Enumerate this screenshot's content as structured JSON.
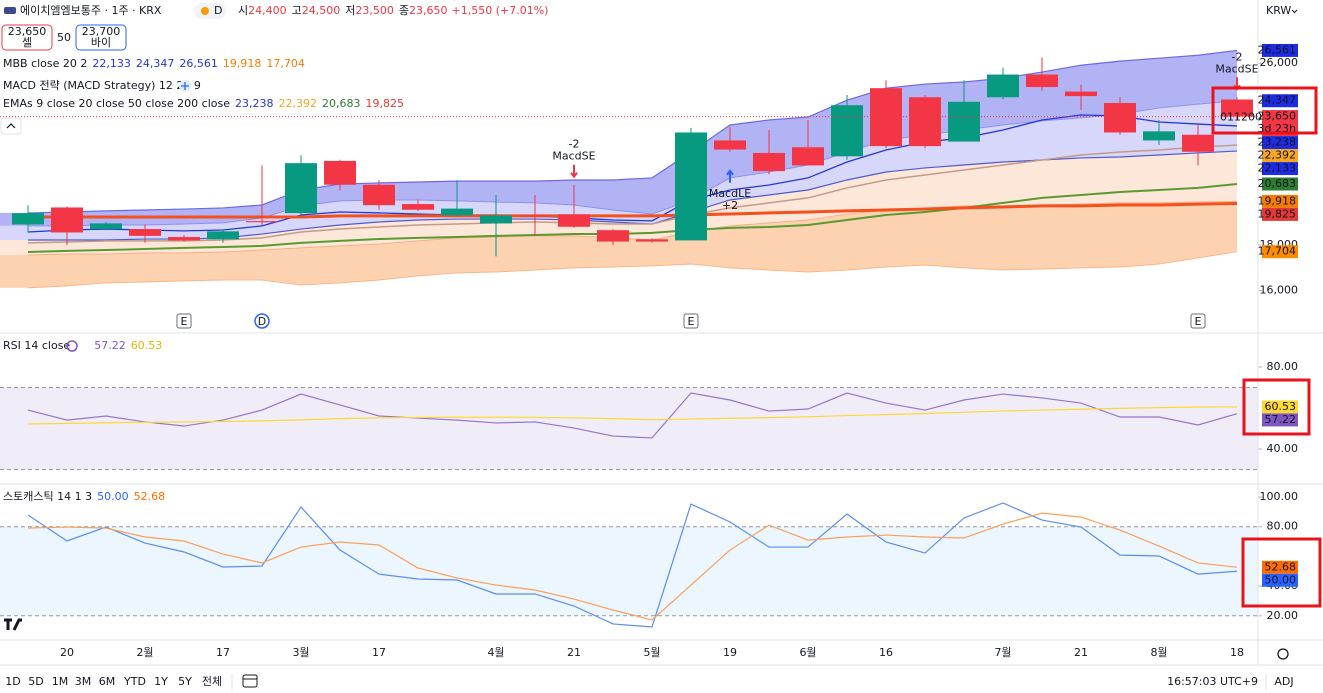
{
  "header": {
    "name": "에이치엠엠보통주 · 1주 · KRX",
    "interval": "D",
    "ohlc": [
      {
        "prefix": "시",
        "text": "24,400"
      },
      {
        "prefix": "고",
        "text": "24,500"
      },
      {
        "prefix": "저",
        "text": "23,500"
      },
      {
        "prefix": "종",
        "text": "23,650"
      }
    ],
    "change": "+1,550 (+7.01%)",
    "currency": "KRW"
  },
  "trade": {
    "sell": {
      "price": "23,650",
      "label": "셀"
    },
    "spread": "50",
    "buy": {
      "price": "23,700",
      "label": "바이"
    }
  },
  "toolbar": {
    "ranges": [
      "1D",
      "5D",
      "1M",
      "3M",
      "6M",
      "YTD",
      "1Y",
      "5Y",
      "전체"
    ],
    "time": "16:57:03 UTC+9",
    "adj": "ADJ"
  },
  "chart_data": [
    {
      "type": "candlestick",
      "categories": [
        null,
        "20",
        null,
        "2월",
        null,
        "17",
        null,
        "3월",
        null,
        "17",
        null,
        null,
        "4월",
        null,
        "21",
        null,
        "5월",
        null,
        "19",
        null,
        "6월",
        null,
        "16",
        null,
        null,
        "7월",
        null,
        "21",
        null,
        "8월",
        null,
        "18"
      ],
      "open": [
        18900,
        19650,
        18700,
        18700,
        18350,
        18250,
        19050,
        19400,
        21700,
        20650,
        19800,
        19300,
        18950,
        19300,
        19350,
        18650,
        18250,
        18200,
        22600,
        22050,
        22300,
        21900,
        24900,
        24500,
        22550,
        24500,
        25500,
        24750,
        24250,
        22600,
        22850,
        24400
      ],
      "high": [
        19750,
        19700,
        19000,
        18900,
        18450,
        18650,
        21500,
        21950,
        21750,
        20850,
        20000,
        20850,
        20200,
        20200,
        20650,
        18700,
        18300,
        23150,
        23200,
        23050,
        23500,
        24600,
        25250,
        24600,
        25250,
        25800,
        26250,
        25050,
        24500,
        23500,
        23300,
        24500
      ],
      "low": [
        18550,
        18000,
        18650,
        18100,
        18150,
        18100,
        18850,
        19300,
        20400,
        19550,
        19500,
        19250,
        17500,
        18400,
        18750,
        18000,
        18100,
        18200,
        22100,
        21100,
        21500,
        21750,
        22250,
        22250,
        22550,
        24400,
        24800,
        23950,
        22850,
        22400,
        21500,
        23500
      ],
      "close": [
        19400,
        18550,
        18950,
        18400,
        18200,
        18600,
        19000,
        21600,
        20650,
        19750,
        19550,
        19600,
        19300,
        19250,
        18800,
        18150,
        18150,
        22950,
        22200,
        21250,
        21500,
        24150,
        22350,
        22350,
        24300,
        25500,
        24950,
        24550,
        22950,
        23000,
        22100,
        23650
      ],
      "up_color": "#089981",
      "down_color": "#f23645",
      "ylim": [
        14170,
        28780
      ],
      "yticks": [
        {
          "value": 16000,
          "label": "16,000"
        },
        {
          "value": 18000,
          "label": "18,000"
        },
        {
          "value": 26000,
          "label": "26,000"
        }
      ],
      "overlays": [
        {
          "color": "#6a6ae8",
          "width": 1.2,
          "values": [
            19410,
            19450,
            19500,
            19540,
            19580,
            19630,
            19760,
            20420,
            20680,
            20730,
            20770,
            20810,
            20810,
            20810,
            20860,
            20860,
            20950,
            22090,
            23280,
            23500,
            23630,
            24370,
            24900,
            25080,
            25170,
            25340,
            25610,
            25910,
            26090,
            26220,
            26350,
            26561
          ]
        },
        {
          "color": "#8f90ee",
          "width": 1,
          "values": [
            18840,
            18840,
            18880,
            18880,
            18920,
            18970,
            19190,
            19720,
            19940,
            19980,
            19980,
            19940,
            19890,
            19850,
            19760,
            19540,
            19360,
            19980,
            20950,
            21210,
            21520,
            22090,
            22620,
            22840,
            23060,
            23280,
            23460,
            23590,
            23760,
            24030,
            24200,
            24347
          ]
        },
        {
          "color": "#4c5bd4",
          "width": 1.2,
          "values": [
            18220,
            18220,
            18220,
            18260,
            18260,
            18310,
            18480,
            18700,
            18880,
            19010,
            19100,
            19140,
            19140,
            19140,
            19100,
            19010,
            18920,
            19450,
            19980,
            20200,
            20420,
            20860,
            21210,
            21390,
            21520,
            21650,
            21740,
            21830,
            21870,
            21960,
            22050,
            22133
          ]
        },
        {
          "color": "#f3b08a",
          "width": 1,
          "values": [
            17560,
            17600,
            17600,
            17650,
            17650,
            17690,
            17780,
            17870,
            17960,
            18040,
            18180,
            18310,
            18350,
            18400,
            18400,
            18310,
            18220,
            18570,
            18840,
            18970,
            19100,
            19360,
            19540,
            19630,
            19720,
            19720,
            19760,
            19800,
            19850,
            19850,
            19890,
            19918
          ]
        },
        {
          "color": "#fbb685",
          "width": 1,
          "values": [
            16110,
            16200,
            16330,
            16370,
            16420,
            16460,
            16460,
            16240,
            16330,
            16460,
            16640,
            16770,
            16810,
            16900,
            16990,
            17030,
            17080,
            17160,
            16990,
            16900,
            16810,
            16900,
            17030,
            17120,
            16990,
            16900,
            16940,
            16990,
            17030,
            17160,
            17430,
            17704
          ]
        },
        {
          "color": "#2636d9",
          "width": 1.3,
          "values": [
            18570,
            18660,
            18700,
            18660,
            18620,
            18660,
            18840,
            19320,
            19450,
            19410,
            19360,
            19320,
            19320,
            19280,
            19190,
            19100,
            19060,
            19980,
            20420,
            20640,
            20950,
            21650,
            22180,
            22530,
            22710,
            23060,
            23500,
            23720,
            23680,
            23410,
            23320,
            23238
          ]
        },
        {
          "color": "#c49a8a",
          "width": 1.5,
          "values": [
            18090,
            18130,
            18180,
            18180,
            18180,
            18220,
            18310,
            18570,
            18700,
            18790,
            18880,
            18920,
            18970,
            19010,
            18970,
            18920,
            18920,
            19320,
            19630,
            19850,
            20070,
            20510,
            20860,
            21080,
            21300,
            21520,
            21740,
            21960,
            22090,
            22180,
            22310,
            22392
          ]
        },
        {
          "color": "#5a9a30",
          "width": 2,
          "values": [
            17690,
            17740,
            17780,
            17820,
            17870,
            17910,
            17960,
            18090,
            18180,
            18260,
            18310,
            18350,
            18400,
            18440,
            18480,
            18480,
            18530,
            18660,
            18750,
            18790,
            18880,
            19100,
            19320,
            19450,
            19630,
            19850,
            20070,
            20200,
            20330,
            20420,
            20510,
            20683
          ]
        },
        {
          "color": "#f4511e",
          "width": 3,
          "values": [
            19230,
            19230,
            19230,
            19230,
            19230,
            19230,
            19230,
            19230,
            19280,
            19280,
            19280,
            19280,
            19280,
            19280,
            19280,
            19280,
            19280,
            19320,
            19360,
            19410,
            19450,
            19500,
            19540,
            19580,
            19630,
            19670,
            19720,
            19720,
            19760,
            19760,
            19800,
            19825
          ]
        }
      ],
      "fills": [
        {
          "between": [
            0,
            1
          ],
          "color": "#a5a6f3"
        },
        {
          "between": [
            1,
            2
          ],
          "color": "#cfd0f9"
        },
        {
          "between": [
            2,
            3
          ],
          "color": "#fde3d2"
        },
        {
          "between": [
            3,
            4
          ],
          "color": "#fdcaa3"
        }
      ],
      "legends": [
        {
          "text": "MBB close 20 2",
          "values": [
            {
              "value": 22133,
              "label": "22,133",
              "color": "#2636d9",
              "tag_color": "#1e2be0"
            },
            {
              "value": 24347,
              "label": "24,347",
              "color": "#2636d9",
              "tag_color": "#1e2be0"
            },
            {
              "value": 26561,
              "label": "26,561",
              "color": "#2636d9",
              "tag_color": "#1e2be0"
            },
            {
              "value": 19918,
              "label": "19,918",
              "color": "#f57c00",
              "tag_color": "#f57c00"
            },
            {
              "value": 17704,
              "label": "17,704",
              "color": "#f57c00",
              "tag_color": "#fb8c00"
            }
          ]
        },
        {
          "text": "MACD 전략 (MACD Strategy) 12 26 9",
          "values": []
        },
        {
          "text": "EMAs 9 close 20 close 50 close 200 close",
          "values": [
            {
              "value": 23238,
              "label": "23,238",
              "color": "#2636d9",
              "tag_color": "#1e2be0"
            },
            {
              "value": 22392,
              "label": "22,392",
              "color": "#f5a623",
              "tag_color": "#f5a623"
            },
            {
              "value": 20683,
              "label": "20,683",
              "color": "#2e7d32",
              "tag_color": "#2e7d32"
            },
            {
              "value": 19825,
              "label": "19,825",
              "color": "#e53935",
              "tag_color": "#e53935"
            }
          ]
        }
      ],
      "last_price": {
        "value": 23650,
        "label": "23,650",
        "countdown": "3d 23h",
        "color": "#f23645"
      },
      "overlay_text": "011200",
      "signals": [
        {
          "index": 14,
          "label": "MacdSE",
          "qty": "-2",
          "side": "short"
        },
        {
          "index": 18,
          "label": "MacdLE",
          "qty": "+2",
          "side": "long"
        },
        {
          "index": 31,
          "label": "MacdSE",
          "qty": "-2",
          "side": "short"
        }
      ],
      "events": [
        {
          "index": 4,
          "label": "E"
        },
        {
          "index": 6,
          "label": "D"
        },
        {
          "index": 17,
          "label": "E"
        },
        {
          "index": 30,
          "label": "E"
        }
      ]
    },
    {
      "type": "line",
      "title": "RSI 14 close",
      "ylim": [
        23.4,
        96.6
      ],
      "yticks": [
        {
          "value": 80,
          "label": "80.00"
        },
        {
          "value": 40,
          "label": "40.00"
        }
      ],
      "bands": [
        70,
        30
      ],
      "band_color": "rgba(126,87,194,0.11)",
      "series": [
        {
          "color": "#9575cd",
          "values": [
            59.0,
            54.1,
            56.1,
            53.2,
            51.2,
            54.1,
            59.0,
            66.8,
            61.5,
            56.1,
            55.1,
            54.1,
            52.7,
            53.2,
            50.2,
            46.3,
            45.4,
            67.3,
            63.9,
            58.5,
            59.5,
            67.3,
            62.4,
            59.0,
            63.9,
            66.8,
            64.9,
            62.4,
            55.6,
            55.6,
            51.7,
            57.22
          ]
        },
        {
          "color": "#fdd835",
          "values": [
            52.2,
            52.5,
            52.8,
            53.0,
            53.2,
            53.4,
            53.7,
            54.2,
            54.8,
            55.2,
            55.4,
            55.5,
            55.5,
            55.4,
            55.2,
            54.8,
            54.3,
            54.6,
            55.0,
            55.3,
            55.7,
            56.3,
            56.8,
            57.3,
            57.9,
            58.5,
            59.0,
            59.4,
            59.8,
            60.2,
            60.5,
            60.53
          ]
        }
      ],
      "legend_values": [
        {
          "value": 57.22,
          "color": "#7e57c2",
          "tag_color": "#7e57c2",
          "text_color": "#ffffff"
        },
        {
          "value": 60.53,
          "color": "#e6b800",
          "tag_color": "#fdd835",
          "text_color": "#000000"
        }
      ]
    },
    {
      "type": "line",
      "title": "스토캐스틱 14 1 3",
      "ylim": [
        3.7,
        108.8
      ],
      "yticks": [
        {
          "value": 100,
          "label": "100.00"
        },
        {
          "value": 80,
          "label": "80.00"
        },
        {
          "value": 40,
          "label": "40.00"
        },
        {
          "value": 20,
          "label": "20.00"
        }
      ],
      "bands": [
        80,
        20
      ],
      "band_color": "rgba(33,150,243,0.09)",
      "series": [
        {
          "color": "#5b8def",
          "values": [
            87.9,
            70.4,
            79.8,
            69.0,
            63.0,
            52.9,
            53.5,
            93.3,
            64.3,
            48.1,
            44.8,
            44.1,
            34.7,
            34.7,
            26.6,
            14.5,
            12.5,
            95.3,
            83.2,
            66.3,
            66.3,
            88.6,
            69.7,
            62.3,
            85.9,
            96.0,
            84.5,
            79.8,
            60.9,
            60.3,
            48.1,
            50.0
          ]
        },
        {
          "color": "#ff9e57",
          "values": [
            79.1,
            79.8,
            79.1,
            73.1,
            70.4,
            61.6,
            55.6,
            66.3,
            69.7,
            67.7,
            52.2,
            45.5,
            40.7,
            37.4,
            31.3,
            23.9,
            17.2,
            40.7,
            64.3,
            81.1,
            71.0,
            73.1,
            74.4,
            73.1,
            72.4,
            81.8,
            89.2,
            86.5,
            77.8,
            67.0,
            55.6,
            52.68
          ]
        }
      ],
      "legend_values": [
        {
          "value": 50,
          "label": "50.00",
          "color": "#2962ff",
          "tag_color": "#2962ff",
          "text_color": "#ffffff"
        },
        {
          "value": 52.68,
          "color": "#ff6d00",
          "tag_color": "#ff6d00",
          "text_color": "#ffffff"
        }
      ]
    }
  ]
}
